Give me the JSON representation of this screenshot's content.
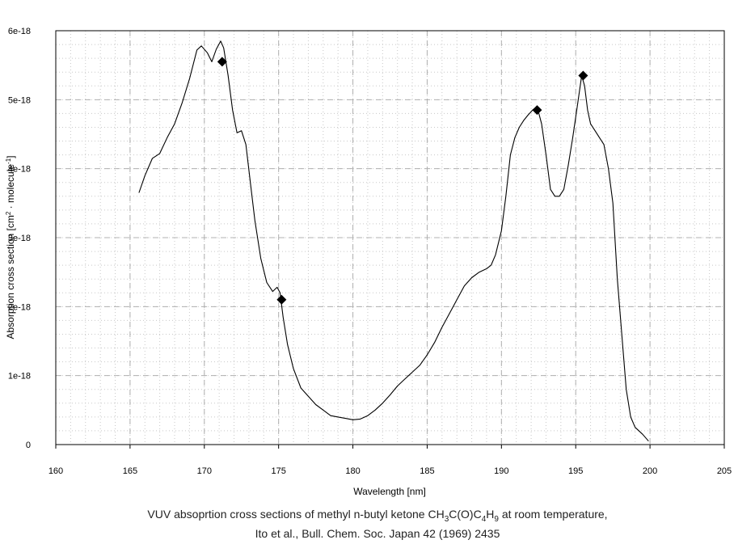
{
  "chart_data": {
    "type": "line",
    "xlabel": "Wavelength [nm]",
    "ylabel": "Absorption cross section [cm² · molecule⁻¹]",
    "xlim": [
      160,
      205
    ],
    "ylim": [
      0,
      6e-18
    ],
    "x_ticks": [
      160,
      165,
      170,
      175,
      180,
      185,
      190,
      195,
      200,
      205
    ],
    "x_tick_labels": [
      "160",
      "165",
      "170",
      "175",
      "180",
      "185",
      "190",
      "195",
      "200",
      "205"
    ],
    "y_ticks": [
      0,
      1e-18,
      2e-18,
      3e-18,
      4e-18,
      5e-18,
      6e-18
    ],
    "y_tick_labels": [
      "0",
      "1e-18",
      "2e-18",
      "3e-18",
      "4e-18",
      "5e-18",
      "6e-18"
    ],
    "grid": true,
    "line_color": "#000000",
    "marker_color": "#000000",
    "series": [
      {
        "style": "line",
        "x": [
          165.6,
          166.0,
          166.5,
          167.0,
          167.5,
          168.0,
          168.5,
          169.0,
          169.5,
          169.8,
          170.2,
          170.5,
          170.8,
          171.1,
          171.3,
          171.6,
          171.9,
          172.2,
          172.5,
          172.8,
          173.1,
          173.4,
          173.8,
          174.2,
          174.6,
          174.9,
          175.1,
          175.3,
          175.6,
          176.0,
          176.5,
          177.0,
          177.5,
          178.0,
          178.5,
          179.0,
          179.5,
          180.0,
          180.5,
          181.0,
          181.5,
          182.0,
          182.5,
          183.0,
          183.5,
          184.0,
          184.5,
          185.0,
          185.5,
          186.0,
          186.5,
          187.0,
          187.5,
          188.0,
          188.5,
          189.0,
          189.3,
          189.6,
          190.0,
          190.3,
          190.6,
          190.9,
          191.2,
          191.5,
          191.8,
          192.1,
          192.4,
          192.7,
          193.0,
          193.3,
          193.6,
          193.9,
          194.2,
          194.5,
          194.8,
          195.1,
          195.4,
          195.6,
          195.8,
          196.0,
          196.3,
          196.6,
          196.9,
          197.2,
          197.5,
          197.8,
          198.1,
          198.4,
          198.7,
          199.0,
          199.5,
          199.9
        ],
        "y": [
          3.65e-18,
          3.9e-18,
          4.15e-18,
          4.22e-18,
          4.45e-18,
          4.65e-18,
          4.95e-18,
          5.3e-18,
          5.72e-18,
          5.78e-18,
          5.68e-18,
          5.55e-18,
          5.73e-18,
          5.85e-18,
          5.75e-18,
          5.35e-18,
          4.85e-18,
          4.52e-18,
          4.55e-18,
          4.35e-18,
          3.8e-18,
          3.25e-18,
          2.7e-18,
          2.35e-18,
          2.22e-18,
          2.28e-18,
          2.2e-18,
          1.85e-18,
          1.45e-18,
          1.1e-18,
          8.2e-19,
          7e-19,
          5.8e-19,
          5e-19,
          4.2e-19,
          4e-19,
          3.8e-19,
          3.6e-19,
          3.7e-19,
          4.2e-19,
          5e-19,
          6e-19,
          7.2e-19,
          8.5e-19,
          9.5e-19,
          1.05e-18,
          1.15e-18,
          1.3e-18,
          1.48e-18,
          1.7e-18,
          1.9e-18,
          2.1e-18,
          2.3e-18,
          2.42e-18,
          2.5e-18,
          2.55e-18,
          2.6e-18,
          2.75e-18,
          3.1e-18,
          3.6e-18,
          4.2e-18,
          4.45e-18,
          4.6e-18,
          4.7e-18,
          4.78e-18,
          4.85e-18,
          4.9e-18,
          4.65e-18,
          4.2e-18,
          3.7e-18,
          3.6e-18,
          3.6e-18,
          3.7e-18,
          4.05e-18,
          4.45e-18,
          4.9e-18,
          5.35e-18,
          5.2e-18,
          4.85e-18,
          4.65e-18,
          4.55e-18,
          4.45e-18,
          4.35e-18,
          4e-18,
          3.5e-18,
          2.4e-18,
          1.6e-18,
          8e-19,
          4e-19,
          2.5e-19,
          1.5e-19,
          5e-20
        ]
      },
      {
        "style": "markers",
        "marker": "diamond",
        "x": [
          171.2,
          175.2,
          192.4,
          195.5
        ],
        "y": [
          5.55e-18,
          2.1e-18,
          4.85e-18,
          5.35e-18
        ]
      }
    ]
  },
  "caption": {
    "line1_pre": "VUV absoprtion cross sections of methyl n-butyl ketone CH",
    "sub_3a": "3",
    "mid1": "C(O)C",
    "sub_4": "4",
    "mid2": "H",
    "sub_9": "9",
    "line1_post": " at room temperature,",
    "line2": "Ito et al., Bull. Chem. Soc. Japan 42 (1969) 2435"
  }
}
